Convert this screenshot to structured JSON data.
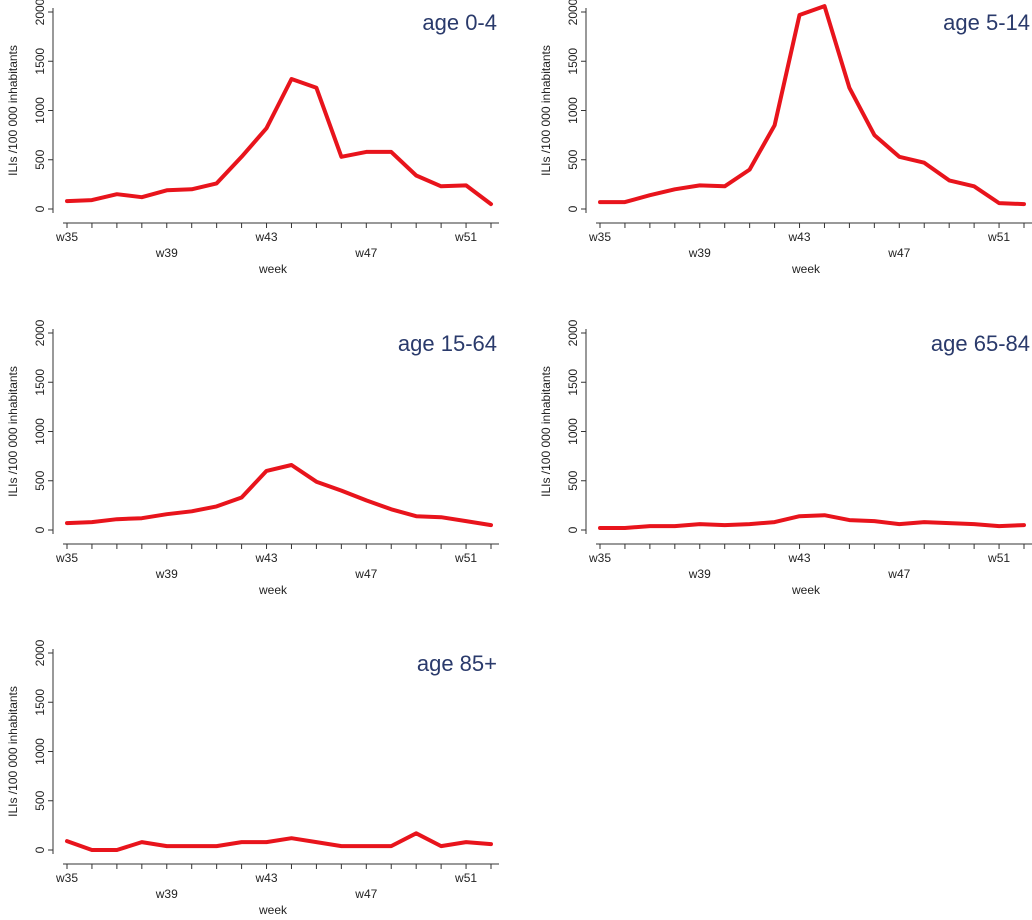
{
  "chart_data": [
    {
      "type": "line",
      "title": "age 0-4",
      "xlabel": "week",
      "ylabel": "ILIs /100 000 inhabitants",
      "x": [
        35,
        36,
        37,
        38,
        39,
        40,
        41,
        42,
        43,
        44,
        45,
        46,
        47,
        48,
        49,
        50,
        51,
        52
      ],
      "x_ticks": [
        35,
        39,
        43,
        47,
        51
      ],
      "x_tick_labels": [
        "w35",
        "w39",
        "w43",
        "w47",
        "w51"
      ],
      "y_ticks": [
        0,
        500,
        1000,
        1500,
        2000
      ],
      "ylim": [
        0,
        2000
      ],
      "grid": false,
      "series": [
        {
          "color": "#e8141c",
          "values": [
            80,
            90,
            150,
            120,
            190,
            200,
            260,
            530,
            820,
            1320,
            1230,
            530,
            580,
            580,
            340,
            230,
            240,
            50
          ]
        }
      ]
    },
    {
      "type": "line",
      "title": "age 5-14",
      "xlabel": "week",
      "ylabel": "ILIs /100 000 inhabitants",
      "x": [
        35,
        36,
        37,
        38,
        39,
        40,
        41,
        42,
        43,
        44,
        45,
        46,
        47,
        48,
        49,
        50,
        51,
        52
      ],
      "x_ticks": [
        35,
        39,
        43,
        47,
        51
      ],
      "x_tick_labels": [
        "w35",
        "w39",
        "w43",
        "w47",
        "w51"
      ],
      "y_ticks": [
        0,
        500,
        1000,
        1500,
        2000
      ],
      "ylim": [
        0,
        2000
      ],
      "grid": false,
      "series": [
        {
          "color": "#e8141c",
          "values": [
            70,
            70,
            140,
            200,
            240,
            230,
            400,
            850,
            1970,
            2060,
            1230,
            750,
            530,
            470,
            290,
            230,
            60,
            50
          ]
        }
      ]
    },
    {
      "type": "line",
      "title": "age 15-64",
      "xlabel": "week",
      "ylabel": "ILIs /100 000 inhabitants",
      "x": [
        35,
        36,
        37,
        38,
        39,
        40,
        41,
        42,
        43,
        44,
        45,
        46,
        47,
        48,
        49,
        50,
        51,
        52
      ],
      "x_ticks": [
        35,
        39,
        43,
        47,
        51
      ],
      "x_tick_labels": [
        "w35",
        "w39",
        "w43",
        "w47",
        "w51"
      ],
      "y_ticks": [
        0,
        500,
        1000,
        1500,
        2000
      ],
      "ylim": [
        0,
        2000
      ],
      "grid": false,
      "series": [
        {
          "color": "#e8141c",
          "values": [
            70,
            80,
            110,
            120,
            160,
            190,
            240,
            330,
            600,
            660,
            490,
            400,
            300,
            210,
            140,
            130,
            90,
            50
          ]
        }
      ]
    },
    {
      "type": "line",
      "title": "age 65-84",
      "xlabel": "week",
      "ylabel": "ILIs /100 000 inhabitants",
      "x": [
        35,
        36,
        37,
        38,
        39,
        40,
        41,
        42,
        43,
        44,
        45,
        46,
        47,
        48,
        49,
        50,
        51,
        52
      ],
      "x_ticks": [
        35,
        39,
        43,
        47,
        51
      ],
      "x_tick_labels": [
        "w35",
        "w39",
        "w43",
        "w47",
        "w51"
      ],
      "y_ticks": [
        0,
        500,
        1000,
        1500,
        2000
      ],
      "ylim": [
        0,
        2000
      ],
      "grid": false,
      "series": [
        {
          "color": "#e8141c",
          "values": [
            20,
            20,
            40,
            40,
            60,
            50,
            60,
            80,
            140,
            150,
            100,
            90,
            60,
            80,
            70,
            60,
            40,
            50
          ]
        }
      ]
    },
    {
      "type": "line",
      "title": "age 85+",
      "xlabel": "week",
      "ylabel": "ILIs /100 000 inhabitants",
      "x": [
        35,
        36,
        37,
        38,
        39,
        40,
        41,
        42,
        43,
        44,
        45,
        46,
        47,
        48,
        49,
        50,
        51,
        52
      ],
      "x_ticks": [
        35,
        39,
        43,
        47,
        51
      ],
      "x_tick_labels": [
        "w35",
        "w39",
        "w43",
        "w47",
        "w51"
      ],
      "y_ticks": [
        0,
        500,
        1000,
        1500,
        2000
      ],
      "ylim": [
        0,
        2000
      ],
      "grid": false,
      "series": [
        {
          "color": "#e8141c",
          "values": [
            90,
            0,
            0,
            80,
            40,
            40,
            40,
            80,
            80,
            120,
            80,
            40,
            40,
            40,
            170,
            40,
            80,
            60
          ]
        }
      ]
    }
  ]
}
